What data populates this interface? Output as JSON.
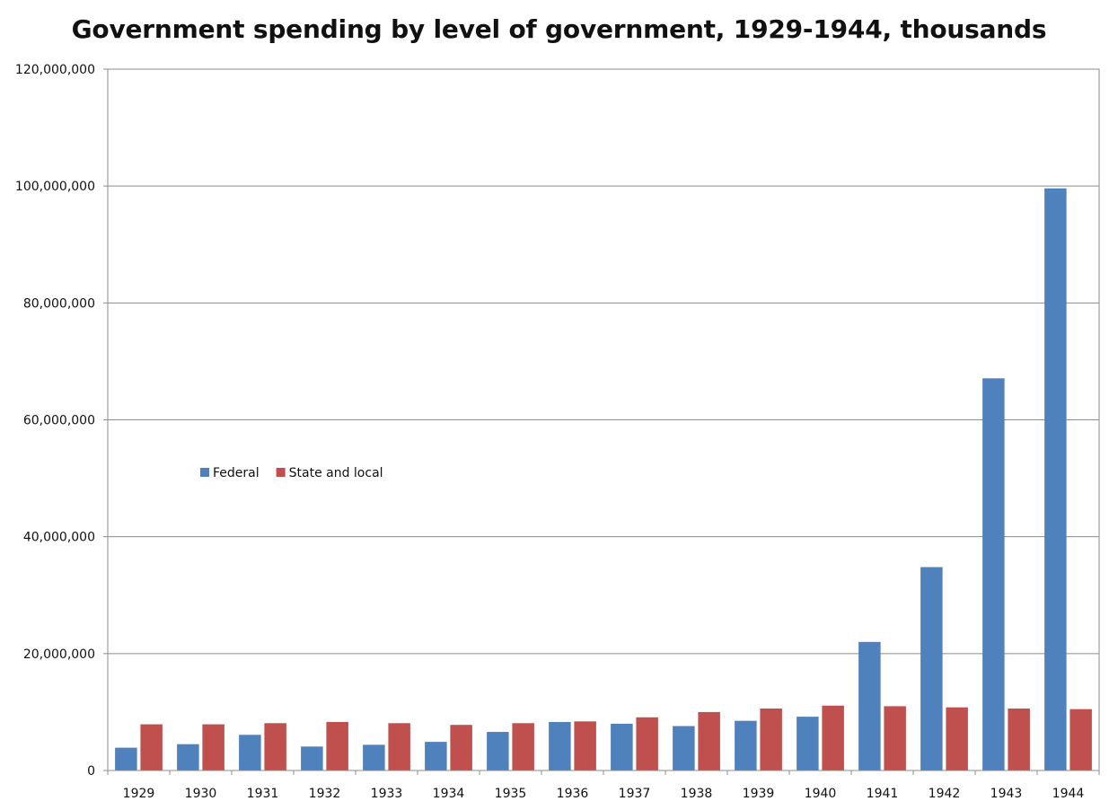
{
  "chart_data": {
    "type": "bar",
    "title": "Government spending by level of government, 1929-1944, thousands",
    "xlabel": "",
    "ylabel": "",
    "categories": [
      "1929",
      "1930",
      "1931",
      "1932",
      "1933",
      "1934",
      "1935",
      "1936",
      "1937",
      "1938",
      "1939",
      "1940",
      "1941",
      "1942",
      "1943",
      "1944"
    ],
    "series": [
      {
        "name": "Federal",
        "color": "#4f81bd",
        "values": [
          3900000,
          4500000,
          6100000,
          4100000,
          4400000,
          4900000,
          6600000,
          8300000,
          8000000,
          7600000,
          8500000,
          9200000,
          22000000,
          34800000,
          67100000,
          99600000
        ]
      },
      {
        "name": "State and local",
        "color": "#c0504d",
        "values": [
          7900000,
          7900000,
          8100000,
          8300000,
          8100000,
          7800000,
          8100000,
          8400000,
          9100000,
          10000000,
          10600000,
          11100000,
          11000000,
          10800000,
          10600000,
          10500000
        ]
      }
    ],
    "ylim": [
      0,
      120000000
    ],
    "yticks": [
      "0",
      "20,000,000",
      "40,000,000",
      "60,000,000",
      "80,000,000",
      "100,000,000",
      "120,000,000"
    ],
    "ytick_values": [
      0,
      20000000,
      40000000,
      60000000,
      80000000,
      100000000,
      120000000
    ],
    "grid": true,
    "legend_position": "center-left inside plot"
  }
}
